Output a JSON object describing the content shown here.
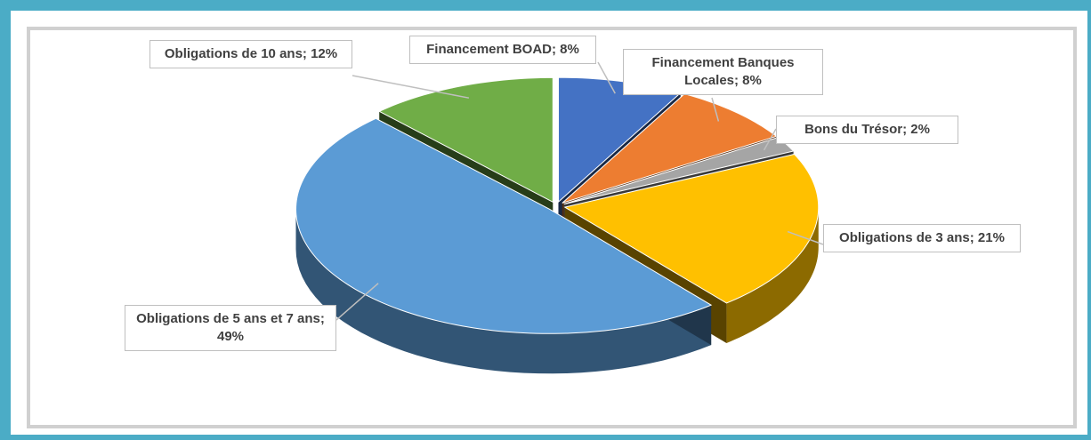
{
  "chart_data": {
    "type": "pie",
    "categories": [
      "Financement BOAD;",
      "Financement Banques Locales;",
      "Bons du Trésor;",
      "Obligations de 3 ans;",
      "Obligations de 5 ans et 7 ans;",
      "Obligations de 10 ans;"
    ],
    "values": [
      8,
      8,
      2,
      21,
      49,
      12
    ],
    "value_labels": [
      "8%",
      "8%",
      "2%",
      "21%",
      "49%",
      "12%"
    ],
    "colors": [
      "#4472c4",
      "#ed7d31",
      "#a5a5a5",
      "#ffc000",
      "#5b9bd5",
      "#70ad47"
    ]
  }
}
